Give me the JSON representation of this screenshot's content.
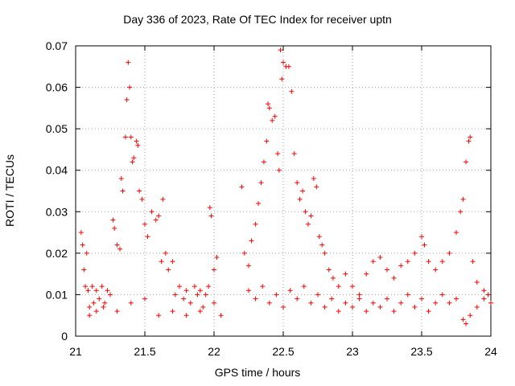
{
  "chart_data": {
    "type": "scatter",
    "title": "Day 336 of 2023, Rate Of TEC Index for receiver uptn",
    "xlabel": "GPS time / hours",
    "ylabel": "ROTI / TECUs",
    "xlim": [
      21,
      24
    ],
    "ylim": [
      0,
      0.07
    ],
    "xticks": [
      "21",
      "21.5",
      "22",
      "22.5",
      "23",
      "23.5",
      "24"
    ],
    "yticks": [
      "0",
      "0.01",
      "0.02",
      "0.03",
      "0.04",
      "0.05",
      "0.06",
      "0.07"
    ],
    "grid": true,
    "marker": "+",
    "color": "#ff0000",
    "series": [
      {
        "points": [
          [
            21.04,
            0.025
          ],
          [
            21.05,
            0.022
          ],
          [
            21.06,
            0.016
          ],
          [
            21.07,
            0.012
          ],
          [
            21.08,
            0.02
          ],
          [
            21.09,
            0.011
          ],
          [
            21.1,
            0.007
          ],
          [
            21.12,
            0.012
          ],
          [
            21.13,
            0.008
          ],
          [
            21.15,
            0.011
          ],
          [
            21.17,
            0.009
          ],
          [
            21.19,
            0.012
          ],
          [
            21.21,
            0.008
          ],
          [
            21.23,
            0.011
          ],
          [
            21.25,
            0.01
          ],
          [
            21.27,
            0.028
          ],
          [
            21.28,
            0.026
          ],
          [
            21.3,
            0.022
          ],
          [
            21.32,
            0.021
          ],
          [
            21.33,
            0.038
          ],
          [
            21.34,
            0.035
          ],
          [
            21.36,
            0.048
          ],
          [
            21.37,
            0.057
          ],
          [
            21.38,
            0.066
          ],
          [
            21.39,
            0.06
          ],
          [
            21.4,
            0.048
          ],
          [
            21.41,
            0.042
          ],
          [
            21.42,
            0.043
          ],
          [
            21.44,
            0.047
          ],
          [
            21.45,
            0.046
          ],
          [
            21.46,
            0.035
          ],
          [
            21.48,
            0.033
          ],
          [
            21.5,
            0.027
          ],
          [
            21.52,
            0.024
          ],
          [
            21.55,
            0.03
          ],
          [
            21.58,
            0.028
          ],
          [
            21.6,
            0.029
          ],
          [
            21.62,
            0.018
          ],
          [
            21.63,
            0.033
          ],
          [
            21.65,
            0.02
          ],
          [
            21.67,
            0.016
          ],
          [
            21.7,
            0.018
          ],
          [
            21.72,
            0.01
          ],
          [
            21.75,
            0.012
          ],
          [
            21.78,
            0.009
          ],
          [
            21.8,
            0.011
          ],
          [
            21.83,
            0.008
          ],
          [
            21.86,
            0.012
          ],
          [
            21.88,
            0.01
          ],
          [
            21.9,
            0.011
          ],
          [
            21.92,
            0.007
          ],
          [
            21.94,
            0.01
          ],
          [
            21.96,
            0.012
          ],
          [
            21.97,
            0.031
          ],
          [
            21.98,
            0.029
          ],
          [
            22.0,
            0.008
          ],
          [
            21.1,
            0.005
          ],
          [
            21.15,
            0.006
          ],
          [
            21.2,
            0.007
          ],
          [
            21.3,
            0.006
          ],
          [
            21.4,
            0.008
          ],
          [
            21.5,
            0.009
          ],
          [
            21.6,
            0.005
          ],
          [
            21.7,
            0.006
          ],
          [
            21.8,
            0.005
          ],
          [
            21.9,
            0.006
          ],
          [
            22.0,
            0.016
          ],
          [
            22.02,
            0.019
          ],
          [
            22.05,
            0.005
          ],
          [
            22.2,
            0.036
          ],
          [
            22.22,
            0.02
          ],
          [
            22.25,
            0.017
          ],
          [
            22.27,
            0.023
          ],
          [
            22.3,
            0.027
          ],
          [
            22.32,
            0.032
          ],
          [
            22.34,
            0.037
          ],
          [
            22.36,
            0.042
          ],
          [
            22.38,
            0.047
          ],
          [
            22.39,
            0.056
          ],
          [
            22.4,
            0.055
          ],
          [
            22.42,
            0.052
          ],
          [
            22.44,
            0.053
          ],
          [
            22.46,
            0.044
          ],
          [
            22.47,
            0.04
          ],
          [
            22.48,
            0.069
          ],
          [
            22.49,
            0.062
          ],
          [
            22.5,
            0.066
          ],
          [
            22.52,
            0.065
          ],
          [
            22.54,
            0.065
          ],
          [
            22.56,
            0.059
          ],
          [
            22.58,
            0.044
          ],
          [
            22.6,
            0.037
          ],
          [
            22.62,
            0.033
          ],
          [
            22.64,
            0.035
          ],
          [
            22.66,
            0.03
          ],
          [
            22.68,
            0.027
          ],
          [
            22.7,
            0.029
          ],
          [
            22.72,
            0.038
          ],
          [
            22.74,
            0.036
          ],
          [
            22.76,
            0.024
          ],
          [
            22.78,
            0.022
          ],
          [
            22.8,
            0.02
          ],
          [
            22.83,
            0.016
          ],
          [
            22.86,
            0.014
          ],
          [
            22.9,
            0.012
          ],
          [
            22.95,
            0.015
          ],
          [
            23.0,
            0.012
          ],
          [
            23.05,
            0.01
          ],
          [
            23.1,
            0.015
          ],
          [
            23.15,
            0.018
          ],
          [
            23.2,
            0.019
          ],
          [
            23.25,
            0.016
          ],
          [
            23.3,
            0.014
          ],
          [
            23.35,
            0.017
          ],
          [
            23.4,
            0.018
          ],
          [
            23.45,
            0.02
          ],
          [
            23.5,
            0.024
          ],
          [
            23.52,
            0.022
          ],
          [
            23.55,
            0.018
          ],
          [
            23.6,
            0.016
          ],
          [
            23.65,
            0.018
          ],
          [
            23.7,
            0.02
          ],
          [
            23.75,
            0.025
          ],
          [
            23.78,
            0.03
          ],
          [
            23.8,
            0.033
          ],
          [
            23.82,
            0.042
          ],
          [
            23.84,
            0.047
          ],
          [
            23.85,
            0.048
          ],
          [
            23.87,
            0.018
          ],
          [
            23.9,
            0.013
          ],
          [
            23.95,
            0.011
          ],
          [
            23.98,
            0.01
          ],
          [
            22.25,
            0.011
          ],
          [
            22.3,
            0.009
          ],
          [
            22.35,
            0.012
          ],
          [
            22.4,
            0.008
          ],
          [
            22.45,
            0.01
          ],
          [
            22.5,
            0.007
          ],
          [
            22.55,
            0.011
          ],
          [
            22.6,
            0.009
          ],
          [
            22.65,
            0.012
          ],
          [
            22.7,
            0.008
          ],
          [
            22.75,
            0.01
          ],
          [
            22.8,
            0.007
          ],
          [
            22.85,
            0.009
          ],
          [
            22.9,
            0.006
          ],
          [
            22.95,
            0.008
          ],
          [
            23.0,
            0.007
          ],
          [
            23.05,
            0.009
          ],
          [
            23.1,
            0.006
          ],
          [
            23.15,
            0.008
          ],
          [
            23.2,
            0.007
          ],
          [
            23.25,
            0.009
          ],
          [
            23.3,
            0.006
          ],
          [
            23.35,
            0.008
          ],
          [
            23.4,
            0.01
          ],
          [
            23.45,
            0.007
          ],
          [
            23.5,
            0.009
          ],
          [
            23.55,
            0.006
          ],
          [
            23.6,
            0.008
          ],
          [
            23.65,
            0.01
          ],
          [
            23.7,
            0.008
          ],
          [
            23.75,
            0.009
          ],
          [
            23.8,
            0.004
          ],
          [
            23.82,
            0.003
          ],
          [
            23.85,
            0.005
          ],
          [
            23.9,
            0.007
          ],
          [
            23.95,
            0.009
          ],
          [
            24.0,
            0.008
          ]
        ]
      }
    ]
  }
}
